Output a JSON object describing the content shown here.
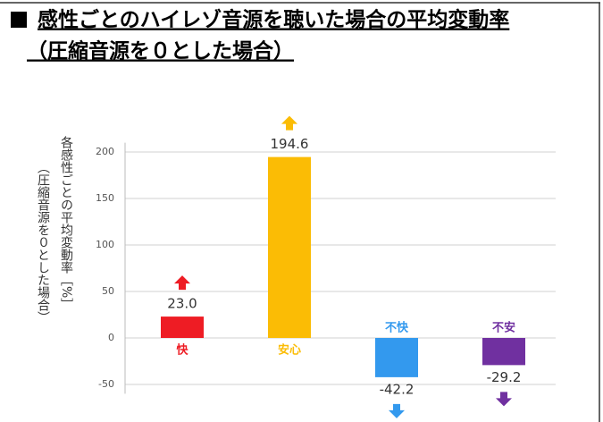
{
  "chart_data": {
    "type": "bar",
    "title": "感性ごとのハイレゾ音源を聴いた場合の平均変動率",
    "subtitle": "（圧縮音源を０とした場合）",
    "y_label": "各感性ごとの平均変動率［%］",
    "y_label_note": "（圧縮音源を０とした場合）",
    "categories": [
      "快",
      "安心",
      "不快",
      "不安"
    ],
    "values": [
      23.0,
      194.6,
      -42.2,
      -29.2
    ],
    "value_labels": [
      "23.0",
      "194.6",
      "-42.2",
      "-29.2"
    ],
    "colors": [
      "#ee1c24",
      "#fbbc05",
      "#3399ee",
      "#7030a0"
    ],
    "ylim": [
      -60,
      210
    ],
    "yticks": [
      -50,
      0,
      50,
      100,
      150,
      200
    ],
    "grid": true
  }
}
